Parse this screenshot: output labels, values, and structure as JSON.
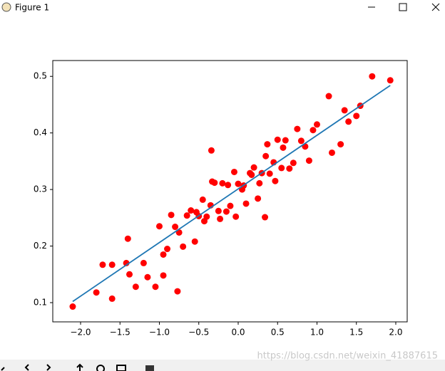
{
  "window": {
    "title": "Figure 1"
  },
  "watermark": "https://blog.csdn.net/weixin_41887615",
  "chart_data": {
    "type": "scatter",
    "xlim": [
      -2.353,
      2.145
    ],
    "ylim": [
      0.066,
      0.528
    ],
    "xticks": [
      {
        "value": -2,
        "label": "−2.0"
      },
      {
        "value": -1.5,
        "label": "−1.5"
      },
      {
        "value": -1,
        "label": "−1.0"
      },
      {
        "value": -0.5,
        "label": "−0.5"
      },
      {
        "value": 0,
        "label": "0.0"
      },
      0.5,
      {
        "value": 1,
        "label": "1.0"
      },
      1.5,
      {
        "value": 2,
        "label": "2.0"
      }
    ],
    "yticks": [
      0.1,
      0.2,
      0.3,
      0.4,
      0.5
    ],
    "points": {
      "color": "#ff0000",
      "x": [
        -1.0,
        -0.9,
        -0.8,
        -0.7,
        -0.6,
        -0.5,
        -0.4,
        -0.3,
        -0.2,
        -0.1,
        0,
        0.1,
        0.2,
        0.3,
        0.4,
        0.5,
        0.6,
        0.7,
        0.8,
        0.9,
        1.0,
        -0.95,
        -0.85,
        -0.75,
        -0.65,
        -0.55,
        -0.45,
        -0.35,
        -0.25,
        -0.15,
        -0.05,
        0.05,
        0.15,
        0.25,
        0.35,
        0.45,
        0.55,
        0.65,
        0.75,
        0.85,
        0.95,
        -0.53,
        -0.43,
        -0.33,
        -0.23,
        -0.13,
        -0.03,
        0.07,
        0.17,
        0.27,
        0.37,
        0.47,
        0.57,
        -2.1,
        -1.8,
        -1.72,
        -1.6,
        -1.6,
        -1.4,
        -1.42,
        -1.38,
        -1.3,
        -1.2,
        -1.15,
        -1.05,
        -0.95,
        -0.77,
        1.7,
        1.93,
        1.55,
        1.5,
        1.4,
        1.15,
        1.35,
        -0.34,
        0.34,
        1.19,
        1.3
      ],
      "y": [
        0.235,
        0.195,
        0.234,
        0.199,
        0.263,
        0.253,
        0.252,
        0.312,
        0.311,
        0.271,
        0.31,
        0.275,
        0.339,
        0.329,
        0.328,
        0.388,
        0.387,
        0.347,
        0.386,
        0.351,
        0.415,
        0.185,
        0.255,
        0.224,
        0.254,
        0.208,
        0.282,
        0.272,
        0.262,
        0.261,
        0.331,
        0.3,
        0.329,
        0.284,
        0.359,
        0.348,
        0.338,
        0.337,
        0.407,
        0.376,
        0.405,
        0.26,
        0.244,
        0.314,
        0.248,
        0.308,
        0.252,
        0.307,
        0.326,
        0.311,
        0.38,
        0.315,
        0.374,
        0.093,
        0.118,
        0.167,
        0.107,
        0.167,
        0.213,
        0.17,
        0.15,
        0.128,
        0.17,
        0.145,
        0.128,
        0.148,
        0.12,
        0.5,
        0.493,
        0.448,
        0.43,
        0.42,
        0.465,
        0.44,
        0.369,
        0.251,
        0.365,
        0.38
      ]
    },
    "fit_line": {
      "color": "#1f77b4",
      "x": [
        -2.1,
        1.93
      ],
      "y": [
        0.102,
        0.484
      ]
    }
  }
}
